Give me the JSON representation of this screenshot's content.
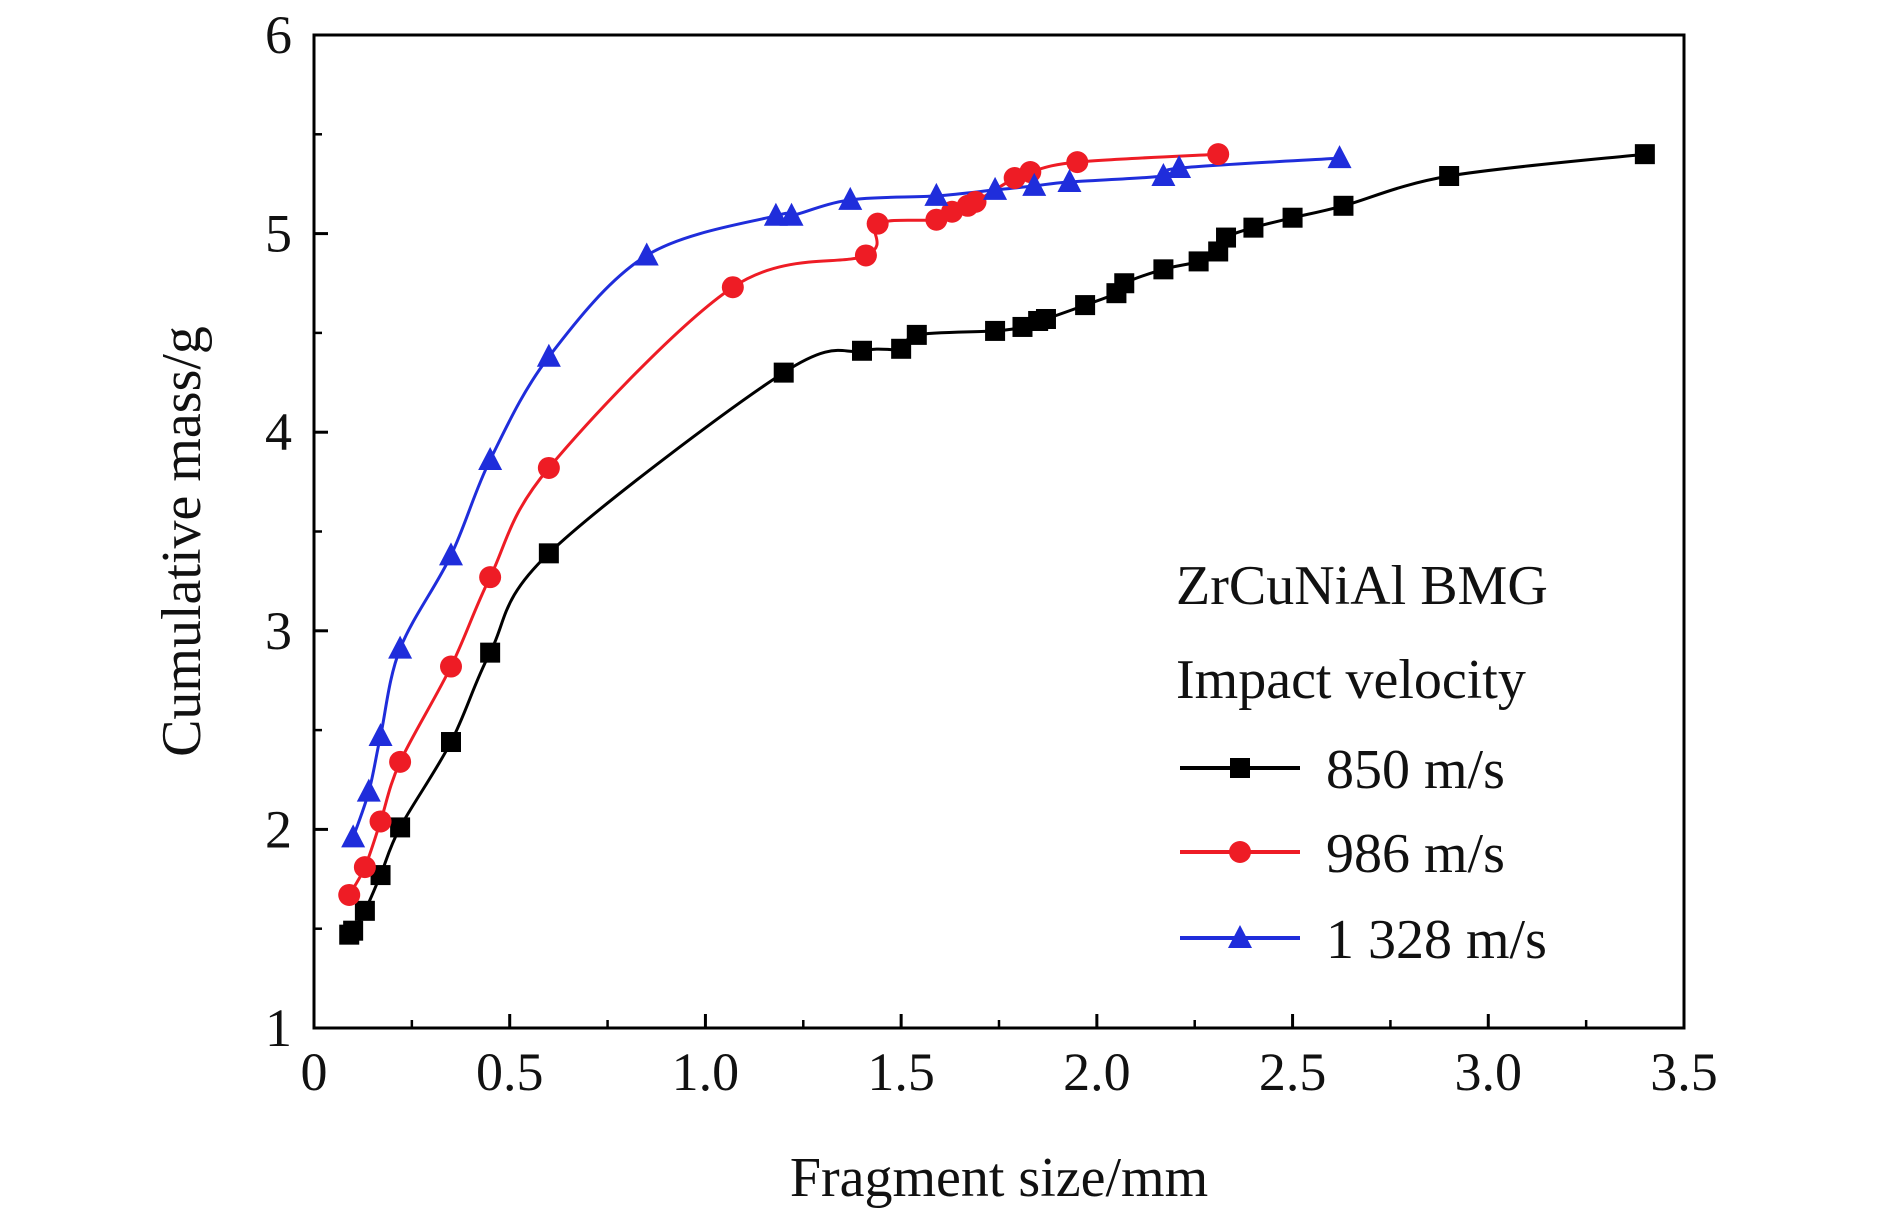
{
  "chart_data": {
    "type": "line",
    "xlabel": "Fragment size/mm",
    "ylabel": "Cumulative mass/g",
    "xlim": [
      0,
      3.5
    ],
    "ylim": [
      1,
      6
    ],
    "x_ticks": [
      "0",
      "0.5",
      "1.0",
      "1.5",
      "2.0",
      "2.5",
      "3.0",
      "3.5"
    ],
    "y_ticks": [
      "1",
      "2",
      "3",
      "4",
      "5",
      "6"
    ],
    "grid": false,
    "legend_placement": "bottom-right",
    "legend_title_lines": [
      "ZrCuNiAl BMG",
      "Impact velocity"
    ],
    "series": [
      {
        "name": "850 m/s",
        "color": "#000000",
        "marker": "square",
        "points": [
          [
            0.09,
            1.47
          ],
          [
            0.1,
            1.49
          ],
          [
            0.13,
            1.59
          ],
          [
            0.17,
            1.77
          ],
          [
            0.22,
            2.01
          ],
          [
            0.35,
            2.44
          ],
          [
            0.45,
            2.89
          ],
          [
            0.6,
            3.39
          ],
          [
            1.2,
            4.3
          ],
          [
            1.4,
            4.41
          ],
          [
            1.5,
            4.42
          ],
          [
            1.54,
            4.49
          ],
          [
            1.74,
            4.51
          ],
          [
            1.81,
            4.53
          ],
          [
            1.85,
            4.56
          ],
          [
            1.87,
            4.57
          ],
          [
            1.97,
            4.64
          ],
          [
            2.05,
            4.7
          ],
          [
            2.07,
            4.75
          ],
          [
            2.17,
            4.82
          ],
          [
            2.26,
            4.86
          ],
          [
            2.31,
            4.91
          ],
          [
            2.33,
            4.98
          ],
          [
            2.4,
            5.03
          ],
          [
            2.5,
            5.08
          ],
          [
            2.63,
            5.14
          ],
          [
            2.9,
            5.29
          ],
          [
            3.4,
            5.4
          ]
        ]
      },
      {
        "name": "986 m/s",
        "color": "#ee1c25",
        "marker": "circle",
        "points": [
          [
            0.09,
            1.67
          ],
          [
            0.13,
            1.81
          ],
          [
            0.17,
            2.04
          ],
          [
            0.22,
            2.34
          ],
          [
            0.35,
            2.82
          ],
          [
            0.45,
            3.27
          ],
          [
            0.6,
            3.82
          ],
          [
            1.07,
            4.73
          ],
          [
            1.41,
            4.89
          ],
          [
            1.44,
            5.05
          ],
          [
            1.59,
            5.07
          ],
          [
            1.63,
            5.11
          ],
          [
            1.67,
            5.14
          ],
          [
            1.69,
            5.16
          ],
          [
            1.79,
            5.28
          ],
          [
            1.83,
            5.31
          ],
          [
            1.95,
            5.36
          ],
          [
            2.31,
            5.4
          ]
        ]
      },
      {
        "name": "1 328 m/s",
        "color": "#1f2ddb",
        "marker": "triangle",
        "points": [
          [
            0.1,
            1.96
          ],
          [
            0.14,
            2.19
          ],
          [
            0.17,
            2.47
          ],
          [
            0.22,
            2.91
          ],
          [
            0.35,
            3.38
          ],
          [
            0.45,
            3.86
          ],
          [
            0.6,
            4.38
          ],
          [
            0.85,
            4.89
          ],
          [
            1.18,
            5.09
          ],
          [
            1.22,
            5.09
          ],
          [
            1.37,
            5.17
          ],
          [
            1.59,
            5.19
          ],
          [
            1.74,
            5.22
          ],
          [
            1.84,
            5.24
          ],
          [
            1.93,
            5.26
          ],
          [
            2.17,
            5.29
          ],
          [
            2.21,
            5.33
          ],
          [
            2.62,
            5.38
          ]
        ]
      }
    ]
  }
}
